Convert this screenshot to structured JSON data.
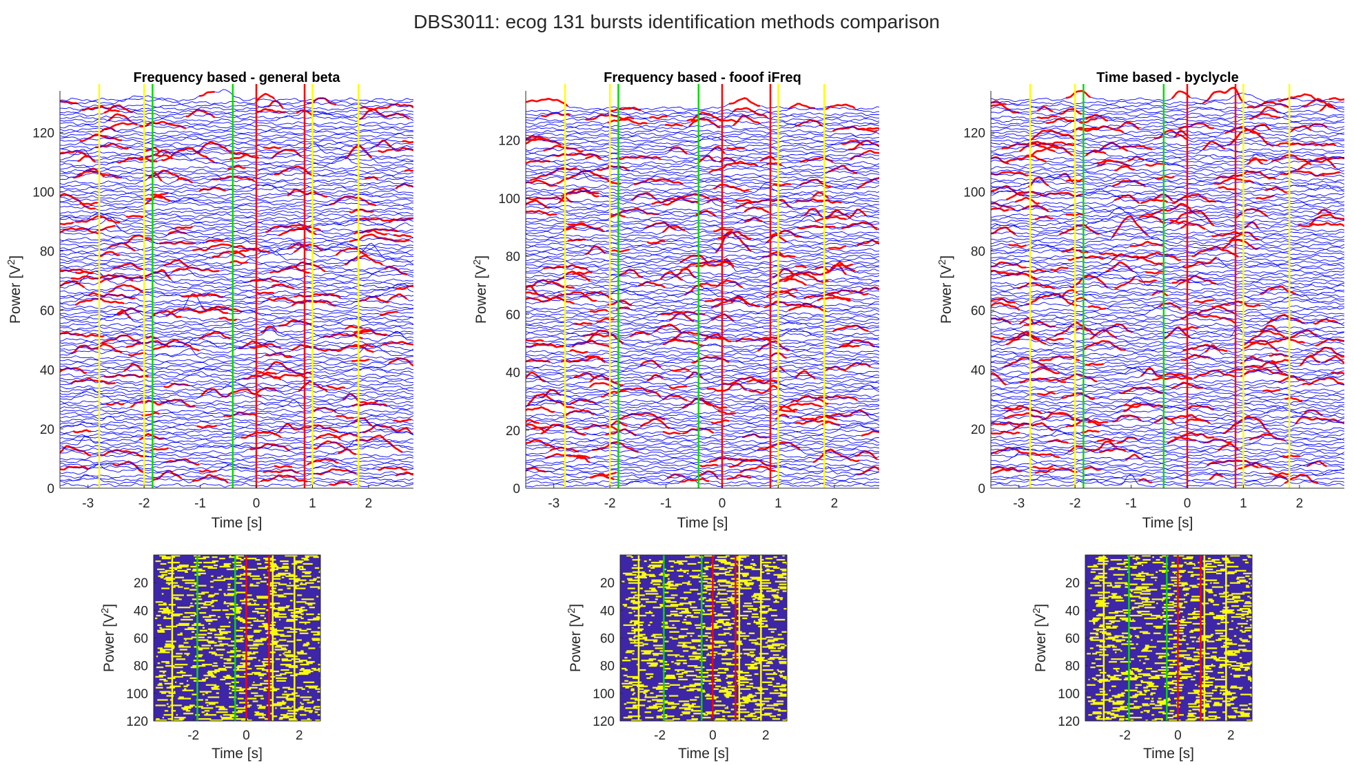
{
  "figure_title": "DBS3011: ecog 131 bursts identification methods comparison",
  "colors": {
    "trace": "#0000ff",
    "burst": "#ff0000",
    "yellow_marker": "#ffff00",
    "green_marker": "#00dd00",
    "red_marker": "#ff0000",
    "raster_background": "#3e26a8",
    "raster_burst": "#f9fb0e"
  },
  "chart_data": [
    {
      "type": "line",
      "title": "Frequency based - general beta",
      "xlabel": "Time [s]",
      "ylabel": "Power [V",
      "ylabel_sup": "2",
      "ylabel_end": "]",
      "xlim": [
        -3.5,
        2.8
      ],
      "ylim": [
        0,
        134
      ],
      "xticks": [
        -3,
        -2,
        -1,
        0,
        1,
        2
      ],
      "yticks": [
        0,
        20,
        40,
        60,
        80,
        100,
        120
      ],
      "n_trials": 131,
      "series": [
        {
          "name": "",
          "description_color": "trace"
        },
        {
          "name": "",
          "description_color": "burst"
        }
      ],
      "vlines": [
        {
          "x": -2.8,
          "color": "yellow_marker"
        },
        {
          "x": -2.0,
          "color": "yellow_marker"
        },
        {
          "x": -1.85,
          "color": "green_marker"
        },
        {
          "x": -0.42,
          "color": "green_marker"
        },
        {
          "x": 0.0,
          "color": "red_marker"
        },
        {
          "x": 0.86,
          "color": "red_marker"
        },
        {
          "x": 1.0,
          "color": "yellow_marker"
        },
        {
          "x": 1.82,
          "color": "yellow_marker"
        }
      ]
    },
    {
      "type": "line",
      "title": "Frequency based - fooof iFreq",
      "xlabel": "Time [s]",
      "ylabel": "Power [V",
      "ylabel_sup": "2",
      "ylabel_end": "]",
      "xlim": [
        -3.5,
        2.8
      ],
      "ylim": [
        0,
        137
      ],
      "xticks": [
        -3,
        -2,
        -1,
        0,
        1,
        2
      ],
      "yticks": [
        0,
        20,
        40,
        60,
        80,
        100,
        120
      ],
      "n_trials": 131,
      "vlines": [
        {
          "x": -2.8,
          "color": "yellow_marker"
        },
        {
          "x": -2.0,
          "color": "yellow_marker"
        },
        {
          "x": -1.85,
          "color": "green_marker"
        },
        {
          "x": -0.42,
          "color": "green_marker"
        },
        {
          "x": 0.0,
          "color": "red_marker"
        },
        {
          "x": 0.86,
          "color": "red_marker"
        },
        {
          "x": 1.0,
          "color": "yellow_marker"
        },
        {
          "x": 1.82,
          "color": "yellow_marker"
        }
      ]
    },
    {
      "type": "line",
      "title": "Time based - byclycle",
      "xlabel": "Time [s]",
      "ylabel": "Power [V",
      "ylabel_sup": "2",
      "ylabel_end": "]",
      "xlim": [
        -3.5,
        2.8
      ],
      "ylim": [
        0,
        134
      ],
      "xticks": [
        -3,
        -2,
        -1,
        0,
        1,
        2
      ],
      "yticks": [
        0,
        20,
        40,
        60,
        80,
        100,
        120
      ],
      "n_trials": 131,
      "vlines": [
        {
          "x": -2.8,
          "color": "yellow_marker"
        },
        {
          "x": -2.0,
          "color": "yellow_marker"
        },
        {
          "x": -1.85,
          "color": "green_marker"
        },
        {
          "x": -0.42,
          "color": "green_marker"
        },
        {
          "x": 0.0,
          "color": "red_marker"
        },
        {
          "x": 0.86,
          "color": "red_marker"
        },
        {
          "x": 1.0,
          "color": "yellow_marker"
        },
        {
          "x": 1.82,
          "color": "yellow_marker"
        }
      ]
    },
    {
      "type": "heatmap",
      "xlabel": "Time [s]",
      "ylabel": "Power [V",
      "ylabel_sup": "2",
      "ylabel_end": "]",
      "xlim": [
        -3.5,
        2.8
      ],
      "ylim": [
        0,
        120
      ],
      "xticks": [
        -2,
        0,
        2
      ],
      "yticks": [
        20,
        40,
        60,
        80,
        100,
        120
      ],
      "y_reversed": true,
      "vlines": [
        {
          "x": -2.8,
          "color": "yellow_marker"
        },
        {
          "x": -1.85,
          "color": "green_marker"
        },
        {
          "x": -0.42,
          "color": "green_marker"
        },
        {
          "x": 0.0,
          "color": "red_marker"
        },
        {
          "x": 0.86,
          "color": "red_marker"
        },
        {
          "x": 1.0,
          "color": "yellow_marker"
        },
        {
          "x": 1.82,
          "color": "yellow_marker"
        }
      ]
    },
    {
      "type": "heatmap",
      "xlabel": "Time [s]",
      "ylabel": "Power [V",
      "ylabel_sup": "2",
      "ylabel_end": "]",
      "xlim": [
        -3.5,
        2.8
      ],
      "ylim": [
        0,
        120
      ],
      "xticks": [
        -2,
        0,
        2
      ],
      "yticks": [
        20,
        40,
        60,
        80,
        100,
        120
      ],
      "y_reversed": true,
      "vlines": [
        {
          "x": -2.8,
          "color": "yellow_marker"
        },
        {
          "x": -1.85,
          "color": "green_marker"
        },
        {
          "x": -0.42,
          "color": "green_marker"
        },
        {
          "x": 0.0,
          "color": "red_marker"
        },
        {
          "x": 0.86,
          "color": "red_marker"
        },
        {
          "x": 1.0,
          "color": "yellow_marker"
        },
        {
          "x": 1.82,
          "color": "yellow_marker"
        }
      ]
    },
    {
      "type": "heatmap",
      "xlabel": "Time [s]",
      "ylabel": "Power [V",
      "ylabel_sup": "2",
      "ylabel_end": "]",
      "xlim": [
        -3.5,
        2.8
      ],
      "ylim": [
        0,
        120
      ],
      "xticks": [
        -2,
        0,
        2
      ],
      "yticks": [
        20,
        40,
        60,
        80,
        100,
        120
      ],
      "y_reversed": true,
      "vlines": [
        {
          "x": -2.8,
          "color": "yellow_marker"
        },
        {
          "x": -1.85,
          "color": "green_marker"
        },
        {
          "x": -0.42,
          "color": "green_marker"
        },
        {
          "x": 0.0,
          "color": "red_marker"
        },
        {
          "x": 0.86,
          "color": "red_marker"
        },
        {
          "x": 1.0,
          "color": "yellow_marker"
        },
        {
          "x": 1.82,
          "color": "yellow_marker"
        }
      ]
    }
  ]
}
